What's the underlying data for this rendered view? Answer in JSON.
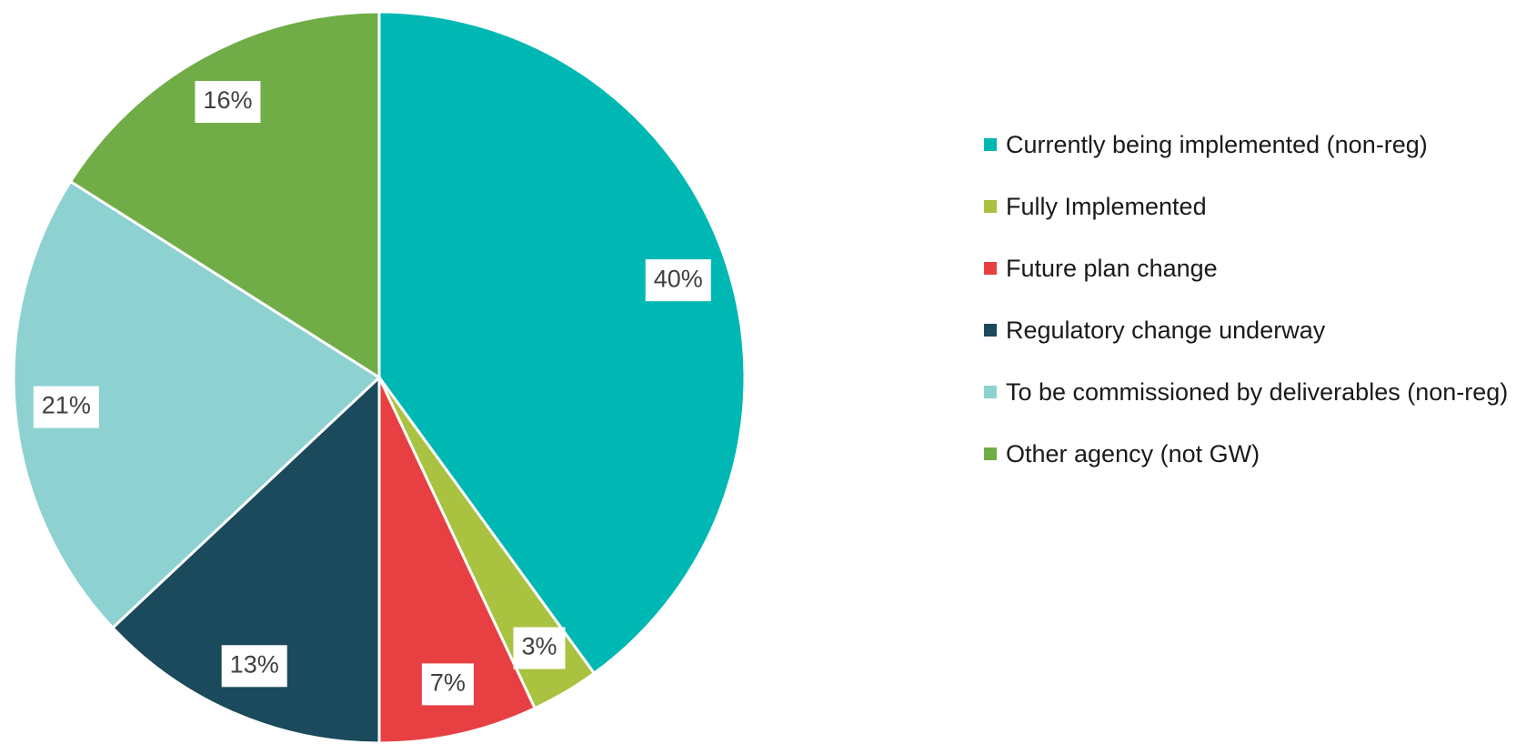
{
  "chart_data": {
    "type": "pie",
    "categories": [
      "Currently being implemented (non-reg)",
      "Fully Implemented",
      "Future plan change",
      "Regulatory change underway",
      "To be commissioned by deliverables (non-reg)",
      "Other agency (not GW)"
    ],
    "values": [
      40,
      3,
      7,
      13,
      21,
      16
    ],
    "value_labels": [
      "40%",
      "3%",
      "7%",
      "13%",
      "21%",
      "16%"
    ],
    "colors": [
      "#00b8b3",
      "#a9c23f",
      "#e84042",
      "#1a4a5c",
      "#8dd1d1",
      "#70ad47"
    ],
    "legend": "right"
  }
}
